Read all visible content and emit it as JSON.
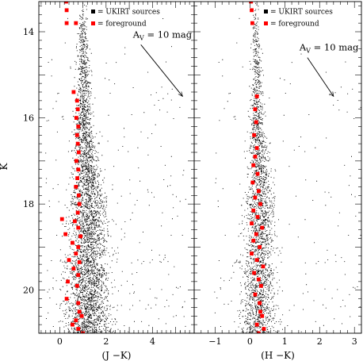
{
  "colors": {
    "frame": "#000000",
    "ukirt": "#000000",
    "foreground": "#ff0000",
    "background": "#ffffff"
  },
  "chart_data": [
    {
      "type": "scatter",
      "xlabel": "(J −K)",
      "ylabel": "K",
      "xlim": [
        -0.9,
        5.8
      ],
      "ylim": [
        21.0,
        13.3
      ],
      "y_inverted": true,
      "xticks_major": [
        0,
        2,
        4
      ],
      "yticks_major": [
        14,
        16,
        18,
        20
      ],
      "legend_position": "top-right",
      "legend": [
        {
          "marker": "black-square",
          "label": "= UKIRT sources"
        },
        {
          "marker": "red-square",
          "label": "= foreground"
        }
      ],
      "annotation": {
        "text": "A",
        "subscript": "V",
        "rest": " = 10 mag",
        "vector_from": [
          3.5,
          14.3
        ],
        "vector_to": [
          5.3,
          15.5
        ]
      },
      "series": [
        {
          "name": "UKIRT sources",
          "color": "#000000",
          "style": "dense-scatter",
          "approx_count": 9000,
          "locus": [
            [
              13.8,
              0.98,
              0.1
            ],
            [
              15.0,
              1.0,
              0.15
            ],
            [
              16.0,
              1.02,
              0.18
            ],
            [
              17.0,
              1.1,
              0.28
            ],
            [
              18.0,
              1.22,
              0.38
            ],
            [
              19.0,
              1.22,
              0.42
            ],
            [
              20.0,
              1.2,
              0.45
            ],
            [
              21.0,
              1.2,
              0.48
            ]
          ]
        },
        {
          "name": "foreground",
          "color": "#ff0000",
          "marker": "square",
          "points": [
            [
              0.28,
              13.3
            ],
            [
              0.3,
              13.5
            ],
            [
              0.3,
              13.8
            ],
            [
              0.7,
              13.8
            ],
            [
              0.6,
              15.4
            ],
            [
              0.75,
              15.6
            ],
            [
              0.78,
              15.8
            ],
            [
              0.72,
              16.0
            ],
            [
              0.8,
              16.2
            ],
            [
              0.75,
              16.4
            ],
            [
              0.78,
              16.6
            ],
            [
              0.82,
              16.8
            ],
            [
              0.72,
              17.0
            ],
            [
              0.8,
              17.2
            ],
            [
              0.76,
              17.4
            ],
            [
              0.7,
              17.6
            ],
            [
              0.82,
              17.8
            ],
            [
              0.85,
              18.0
            ],
            [
              0.78,
              18.2
            ],
            [
              0.1,
              18.35
            ],
            [
              0.65,
              18.4
            ],
            [
              0.8,
              18.55
            ],
            [
              0.25,
              18.7
            ],
            [
              0.9,
              18.75
            ],
            [
              0.55,
              18.9
            ],
            [
              0.8,
              19.0
            ],
            [
              0.7,
              19.15
            ],
            [
              0.4,
              19.3
            ],
            [
              0.85,
              19.35
            ],
            [
              0.6,
              19.5
            ],
            [
              0.8,
              19.65
            ],
            [
              0.35,
              19.8
            ],
            [
              0.75,
              19.9
            ],
            [
              0.3,
              20.2
            ],
            [
              0.8,
              20.3
            ],
            [
              0.85,
              20.5
            ],
            [
              0.95,
              20.6
            ],
            [
              0.7,
              20.7
            ],
            [
              0.55,
              20.8
            ],
            [
              0.8,
              20.9
            ],
            [
              1.0,
              21.0
            ]
          ]
        }
      ]
    },
    {
      "type": "scatter",
      "xlabel": "(H −K)",
      "ylabel": "",
      "xlim": [
        -1.6,
        3.2
      ],
      "ylim": [
        21.0,
        13.3
      ],
      "y_inverted": true,
      "xticks_major": [
        -1,
        0,
        1,
        2,
        3
      ],
      "yticks_major": [
        14,
        16,
        18,
        20
      ],
      "legend_position": "top-right",
      "legend": [
        {
          "marker": "black-square",
          "label": "= UKIRT sources"
        },
        {
          "marker": "red-square",
          "label": "= foreground"
        }
      ],
      "annotation": {
        "text": "A",
        "subscript": "V",
        "rest": " = 10 mag",
        "vector_from": [
          1.65,
          14.6
        ],
        "vector_to": [
          2.4,
          15.5
        ]
      },
      "series": [
        {
          "name": "UKIRT sources",
          "color": "#000000",
          "style": "dense-scatter",
          "approx_count": 9000,
          "locus": [
            [
              13.8,
              0.15,
              0.05
            ],
            [
              15.0,
              0.18,
              0.08
            ],
            [
              16.0,
              0.2,
              0.1
            ],
            [
              17.0,
              0.25,
              0.16
            ],
            [
              18.0,
              0.28,
              0.2
            ],
            [
              19.0,
              0.25,
              0.22
            ],
            [
              20.0,
              0.22,
              0.24
            ],
            [
              21.0,
              0.22,
              0.26
            ]
          ]
        },
        {
          "name": "foreground",
          "color": "#ff0000",
          "marker": "square",
          "points": [
            [
              0.03,
              13.3
            ],
            [
              0.05,
              13.5
            ],
            [
              0.07,
              13.8
            ],
            [
              0.2,
              15.5
            ],
            [
              0.15,
              15.8
            ],
            [
              0.18,
              16.1
            ],
            [
              0.12,
              16.4
            ],
            [
              0.2,
              16.7
            ],
            [
              0.15,
              16.9
            ],
            [
              0.1,
              17.1
            ],
            [
              0.22,
              17.3
            ],
            [
              0.08,
              17.5
            ],
            [
              0.25,
              17.7
            ],
            [
              0.15,
              17.85
            ],
            [
              0.3,
              18.0
            ],
            [
              0.1,
              18.15
            ],
            [
              0.22,
              18.3
            ],
            [
              0.05,
              18.45
            ],
            [
              0.35,
              18.55
            ],
            [
              0.18,
              18.7
            ],
            [
              0.1,
              18.85
            ],
            [
              0.28,
              19.0
            ],
            [
              0.05,
              19.15
            ],
            [
              0.2,
              19.3
            ],
            [
              0.38,
              19.45
            ],
            [
              0.12,
              19.6
            ],
            [
              0.25,
              19.75
            ],
            [
              0.32,
              19.9
            ],
            [
              0.15,
              20.1
            ],
            [
              0.28,
              20.3
            ],
            [
              0.3,
              20.5
            ],
            [
              0.35,
              20.6
            ],
            [
              0.2,
              20.8
            ],
            [
              0.4,
              20.9
            ],
            [
              0.25,
              21.0
            ]
          ]
        }
      ]
    }
  ]
}
